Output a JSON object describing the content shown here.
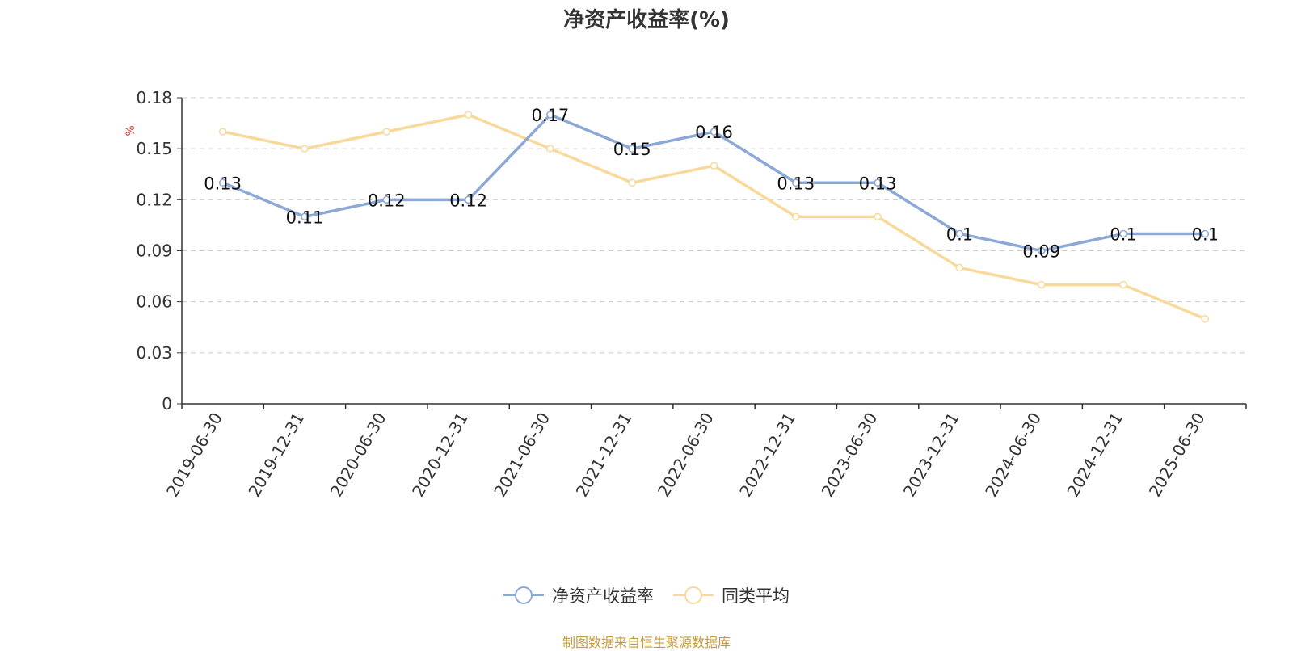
{
  "chart_data": {
    "type": "line",
    "title": "净资产收益率(%)",
    "ylabel": "%",
    "ylim": [
      0,
      0.18
    ],
    "yticks": [
      0,
      0.03,
      0.06,
      0.09,
      0.12,
      0.15,
      0.18
    ],
    "ytick_labels": [
      "0",
      "0.03",
      "0.06",
      "0.09",
      "0.12",
      "0.15",
      "0.18"
    ],
    "grid": true,
    "legend_position": "bottom-center",
    "categories": [
      "2019-06-30",
      "2019-12-31",
      "2020-06-30",
      "2020-12-31",
      "2021-06-30",
      "2021-12-31",
      "2022-06-30",
      "2022-12-31",
      "2023-06-30",
      "2023-12-31",
      "2024-06-30",
      "2024-12-31",
      "2025-06-30"
    ],
    "series": [
      {
        "name": "净资产收益率",
        "color": "#8ba8d6",
        "values": [
          0.13,
          0.11,
          0.12,
          0.12,
          0.17,
          0.15,
          0.16,
          0.13,
          0.13,
          0.1,
          0.09,
          0.1,
          0.1
        ],
        "data_labels": [
          "0.13",
          "0.11",
          "0.12",
          "0.12",
          "0.17",
          "0.15",
          "0.16",
          "0.13",
          "0.13",
          "0.1",
          "0.09",
          "0.1",
          "0.1"
        ]
      },
      {
        "name": "同类平均",
        "color": "#f9d99a",
        "values": [
          0.16,
          0.15,
          0.16,
          0.17,
          0.15,
          0.13,
          0.14,
          0.11,
          0.11,
          0.08,
          0.07,
          0.07,
          0.05
        ]
      }
    ]
  },
  "source_note": "制图数据来自恒生聚源数据库"
}
